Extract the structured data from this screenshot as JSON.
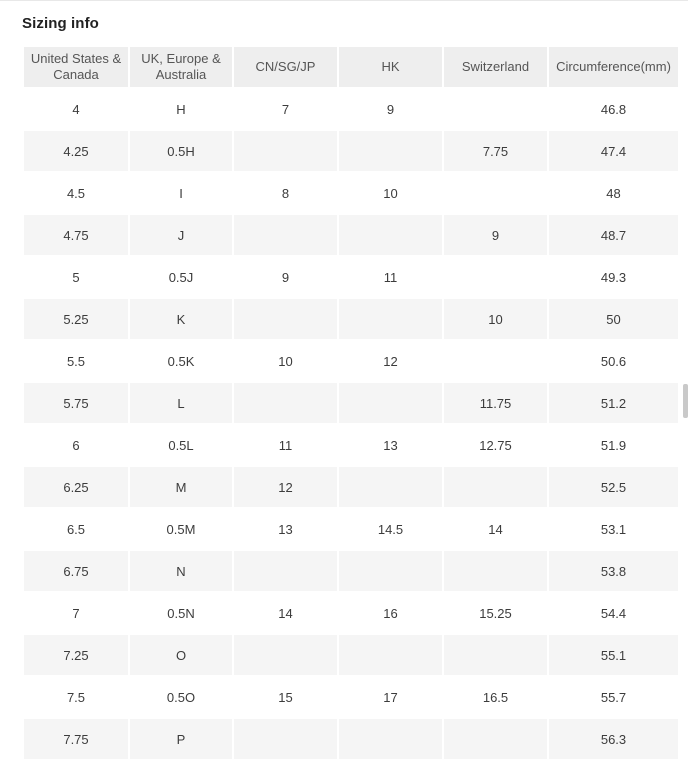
{
  "page": {
    "title": "Sizing info"
  },
  "table": {
    "columns": [
      "United States & Canada",
      "UK, Europe & Australia",
      "CN/SG/JP",
      "HK",
      "Switzerland",
      "Circumference(mm)"
    ],
    "rows": [
      [
        "4",
        "H",
        "7",
        "9",
        "",
        "46.8"
      ],
      [
        "4.25",
        "0.5H",
        "",
        "",
        "7.75",
        "47.4"
      ],
      [
        "4.5",
        "I",
        "8",
        "10",
        "",
        "48"
      ],
      [
        "4.75",
        "J",
        "",
        "",
        "9",
        "48.7"
      ],
      [
        "5",
        "0.5J",
        "9",
        "11",
        "",
        "49.3"
      ],
      [
        "5.25",
        "K",
        "",
        "",
        "10",
        "50"
      ],
      [
        "5.5",
        "0.5K",
        "10",
        "12",
        "",
        "50.6"
      ],
      [
        "5.75",
        "L",
        "",
        "",
        "11.75",
        "51.2"
      ],
      [
        "6",
        "0.5L",
        "11",
        "13",
        "12.75",
        "51.9"
      ],
      [
        "6.25",
        "M",
        "12",
        "",
        "",
        "52.5"
      ],
      [
        "6.5",
        "0.5M",
        "13",
        "14.5",
        "14",
        "53.1"
      ],
      [
        "6.75",
        "N",
        "",
        "",
        "",
        "53.8"
      ],
      [
        "7",
        "0.5N",
        "14",
        "16",
        "15.25",
        "54.4"
      ],
      [
        "7.25",
        "O",
        "",
        "",
        "",
        "55.1"
      ],
      [
        "7.5",
        "0.5O",
        "15",
        "17",
        "16.5",
        "55.7"
      ],
      [
        "7.75",
        "P",
        "",
        "",
        "",
        "56.3"
      ]
    ],
    "colors": {
      "header_bg": "#eeeeee",
      "stripe_bg": "#f5f5f5",
      "header_text": "#555555",
      "cell_text": "#3c3c3c"
    }
  }
}
